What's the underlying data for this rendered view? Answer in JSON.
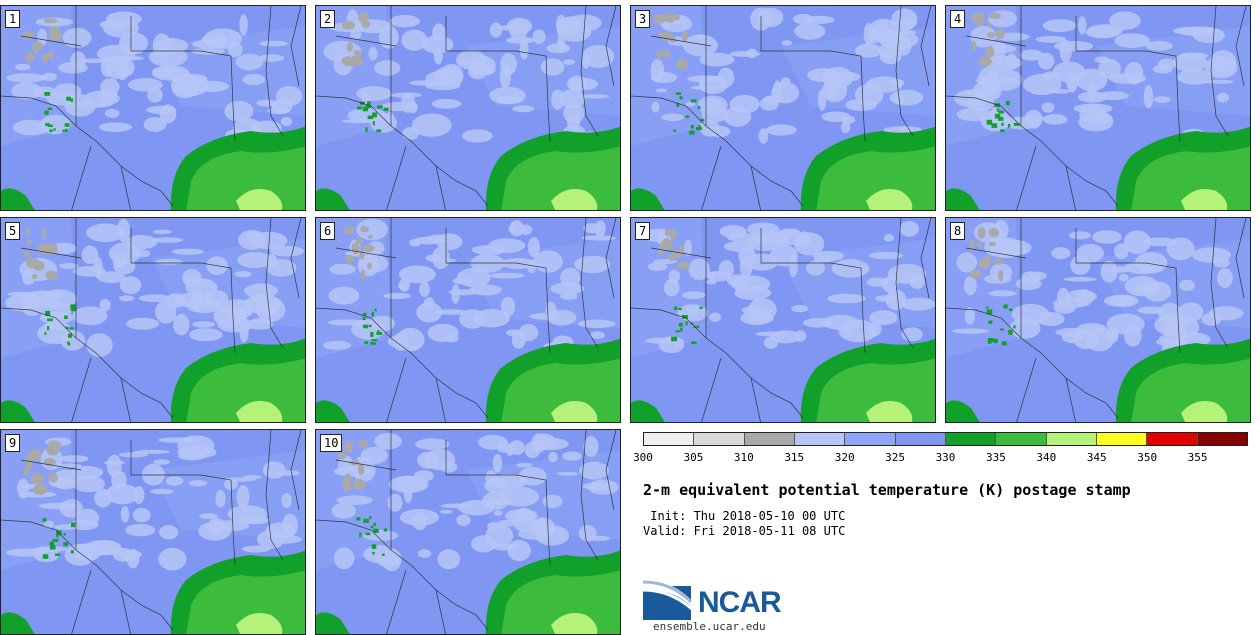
{
  "members": [
    "1",
    "2",
    "3",
    "4",
    "5",
    "6",
    "7",
    "8",
    "9",
    "10"
  ],
  "colorbar": {
    "colors": [
      "#efefef",
      "#d9d9d9",
      "#a9a9a9",
      "#b6c6f7",
      "#8fa5f7",
      "#7f96f2",
      "#11a02a",
      "#3cbb3c",
      "#b5f27a",
      "#ffff1e",
      "#e10000",
      "#860000"
    ],
    "ticks": [
      "300",
      "305",
      "310",
      "315",
      "320",
      "325",
      "330",
      "335",
      "340",
      "345",
      "350",
      "355"
    ]
  },
  "title": "2-m equivalent potential temperature (K) postage stamp",
  "init_line": " Init: Thu 2018-05-10 00 UTC",
  "valid_line": "Valid: Fri 2018-05-11 08 UTC",
  "logo": {
    "text": "NCAR",
    "url": "ensemble.ucar.edu"
  }
}
